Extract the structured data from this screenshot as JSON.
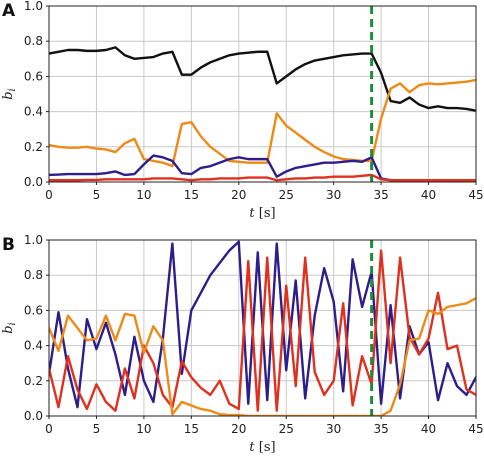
{
  "chart_data": [
    {
      "type": "line",
      "panel_label": "A",
      "xlabel": "t [s]",
      "ylabel": "b_i",
      "xlim": [
        0,
        45
      ],
      "ylim": [
        0,
        1.0
      ],
      "xticks": [
        "0",
        "5",
        "10",
        "15",
        "20",
        "25",
        "30",
        "35",
        "40",
        "45"
      ],
      "yticks": [
        "0.0",
        "0.2",
        "0.4",
        "0.6",
        "0.8",
        "1.0"
      ],
      "grid": true,
      "vline": {
        "x": 34,
        "color": "#1e8c3a",
        "style": "dashed"
      },
      "series": [
        {
          "color": "#111111",
          "x": [
            0,
            1,
            2,
            3,
            4,
            5,
            6,
            7,
            8,
            9,
            10,
            11,
            12,
            13,
            14,
            15,
            16,
            17,
            18,
            19,
            20,
            21,
            22,
            23,
            24,
            25,
            26,
            27,
            28,
            29,
            30,
            31,
            32,
            33,
            34,
            35,
            36,
            37,
            38,
            39,
            40,
            41,
            42,
            43,
            44,
            45
          ],
          "values": [
            0.73,
            0.74,
            0.75,
            0.75,
            0.745,
            0.745,
            0.75,
            0.765,
            0.72,
            0.7,
            0.705,
            0.71,
            0.73,
            0.74,
            0.61,
            0.61,
            0.65,
            0.68,
            0.7,
            0.72,
            0.73,
            0.735,
            0.74,
            0.74,
            0.56,
            0.6,
            0.64,
            0.67,
            0.69,
            0.7,
            0.71,
            0.72,
            0.725,
            0.73,
            0.73,
            0.62,
            0.46,
            0.45,
            0.48,
            0.44,
            0.42,
            0.43,
            0.42,
            0.42,
            0.415,
            0.405
          ]
        },
        {
          "color": "#ef8a17",
          "x": [
            0,
            1,
            2,
            3,
            4,
            5,
            6,
            7,
            8,
            9,
            10,
            11,
            12,
            13,
            14,
            15,
            16,
            17,
            18,
            19,
            20,
            21,
            22,
            23,
            24,
            25,
            26,
            27,
            28,
            29,
            30,
            31,
            32,
            33,
            34,
            35,
            36,
            37,
            38,
            39,
            40,
            41,
            42,
            43,
            44,
            45
          ],
          "values": [
            0.21,
            0.2,
            0.195,
            0.195,
            0.2,
            0.19,
            0.185,
            0.17,
            0.22,
            0.245,
            0.13,
            0.12,
            0.11,
            0.09,
            0.33,
            0.34,
            0.26,
            0.2,
            0.16,
            0.12,
            0.115,
            0.11,
            0.11,
            0.11,
            0.39,
            0.32,
            0.28,
            0.24,
            0.2,
            0.17,
            0.145,
            0.13,
            0.125,
            0.12,
            0.12,
            0.36,
            0.53,
            0.56,
            0.51,
            0.55,
            0.56,
            0.555,
            0.56,
            0.565,
            0.57,
            0.58
          ]
        },
        {
          "color": "#2e1e8c",
          "x": [
            0,
            1,
            2,
            3,
            4,
            5,
            6,
            7,
            8,
            9,
            10,
            11,
            12,
            13,
            14,
            15,
            16,
            17,
            18,
            19,
            20,
            21,
            22,
            23,
            24,
            25,
            26,
            27,
            28,
            29,
            30,
            31,
            32,
            33,
            34,
            35,
            36,
            37,
            38,
            39,
            40,
            41,
            42,
            43,
            44,
            45
          ],
          "values": [
            0.04,
            0.042,
            0.045,
            0.045,
            0.045,
            0.045,
            0.05,
            0.06,
            0.04,
            0.045,
            0.1,
            0.15,
            0.14,
            0.12,
            0.05,
            0.045,
            0.08,
            0.09,
            0.11,
            0.13,
            0.14,
            0.13,
            0.13,
            0.13,
            0.03,
            0.06,
            0.08,
            0.09,
            0.1,
            0.11,
            0.11,
            0.115,
            0.12,
            0.115,
            0.14,
            0.02,
            0.01,
            0.01,
            0.01,
            0.01,
            0.01,
            0.01,
            0.01,
            0.01,
            0.01,
            0.01
          ]
        },
        {
          "color": "#e0301e",
          "x": [
            0,
            1,
            2,
            3,
            4,
            5,
            6,
            7,
            8,
            9,
            10,
            11,
            12,
            13,
            14,
            15,
            16,
            17,
            18,
            19,
            20,
            21,
            22,
            23,
            24,
            25,
            26,
            27,
            28,
            29,
            30,
            31,
            32,
            33,
            34,
            35,
            36,
            37,
            38,
            39,
            40,
            41,
            42,
            43,
            44,
            45
          ],
          "values": [
            0.01,
            0.01,
            0.01,
            0.01,
            0.012,
            0.012,
            0.015,
            0.015,
            0.015,
            0.015,
            0.015,
            0.02,
            0.02,
            0.02,
            0.015,
            0.01,
            0.015,
            0.015,
            0.02,
            0.02,
            0.02,
            0.025,
            0.025,
            0.025,
            0.01,
            0.015,
            0.02,
            0.02,
            0.025,
            0.025,
            0.03,
            0.03,
            0.03,
            0.035,
            0.04,
            0.015,
            0.01,
            0.01,
            0.01,
            0.01,
            0.01,
            0.01,
            0.01,
            0.01,
            0.01,
            0.01
          ]
        }
      ]
    },
    {
      "type": "line",
      "panel_label": "B",
      "xlabel": "t [s]",
      "ylabel": "b_i",
      "xlim": [
        0,
        45
      ],
      "ylim": [
        0,
        1.0
      ],
      "xticks": [
        "0",
        "5",
        "10",
        "15",
        "20",
        "25",
        "30",
        "35",
        "40",
        "45"
      ],
      "yticks": [
        "0.0",
        "0.2",
        "0.4",
        "0.6",
        "0.8",
        "1.0"
      ],
      "grid": true,
      "vline": {
        "x": 34,
        "color": "#1e8c3a",
        "style": "dashed"
      },
      "series": [
        {
          "color": "#2e1e8c",
          "x": [
            0,
            1,
            2,
            3,
            4,
            5,
            6,
            7,
            8,
            9,
            10,
            11,
            12,
            13,
            14,
            15,
            16,
            17,
            18,
            19,
            20,
            21,
            22,
            23,
            24,
            25,
            26,
            27,
            28,
            29,
            30,
            31,
            32,
            33,
            34,
            35,
            36,
            37,
            38,
            39,
            40,
            41,
            42,
            43,
            44,
            45
          ],
          "values": [
            0.24,
            0.59,
            0.27,
            0.05,
            0.55,
            0.38,
            0.53,
            0.35,
            0.12,
            0.45,
            0.2,
            0.08,
            0.44,
            0.98,
            0.24,
            0.6,
            0.7,
            0.8,
            0.87,
            0.94,
            0.99,
            0.07,
            0.93,
            0.09,
            0.98,
            0.26,
            0.77,
            0.1,
            0.57,
            0.84,
            0.65,
            0.14,
            0.89,
            0.62,
            0.82,
            0.07,
            0.63,
            0.1,
            0.51,
            0.35,
            0.42,
            0.09,
            0.3,
            0.17,
            0.12,
            0.22
          ]
        },
        {
          "color": "#e0301e",
          "x": [
            0,
            1,
            2,
            3,
            4,
            5,
            6,
            7,
            8,
            9,
            10,
            11,
            12,
            13,
            14,
            15,
            16,
            17,
            18,
            19,
            20,
            21,
            22,
            23,
            24,
            25,
            26,
            27,
            28,
            29,
            30,
            31,
            32,
            33,
            34,
            35,
            36,
            37,
            38,
            39,
            40,
            41,
            42,
            43,
            44,
            45
          ],
          "values": [
            0.27,
            0.05,
            0.34,
            0.15,
            0.04,
            0.18,
            0.08,
            0.03,
            0.27,
            0.1,
            0.4,
            0.3,
            0.12,
            0.05,
            0.31,
            0.22,
            0.16,
            0.12,
            0.2,
            0.07,
            0.04,
            0.88,
            0.03,
            0.9,
            0.03,
            0.74,
            0.17,
            0.9,
            0.25,
            0.12,
            0.2,
            0.64,
            0.06,
            0.34,
            0.18,
            0.94,
            0.3,
            0.9,
            0.45,
            0.35,
            0.44,
            0.7,
            0.38,
            0.4,
            0.15,
            0.12
          ]
        },
        {
          "color": "#ef8a17",
          "x": [
            0,
            1,
            2,
            3,
            4,
            5,
            6,
            7,
            8,
            9,
            10,
            11,
            12,
            13,
            14,
            15,
            16,
            17,
            18,
            19,
            20,
            21,
            22,
            23,
            24,
            25,
            26,
            27,
            28,
            29,
            30,
            31,
            32,
            33,
            34,
            35,
            36,
            37,
            38,
            39,
            40,
            41,
            42,
            43,
            44,
            45
          ],
          "values": [
            0.5,
            0.37,
            0.57,
            0.5,
            0.43,
            0.44,
            0.57,
            0.43,
            0.58,
            0.57,
            0.36,
            0.51,
            0.43,
            0.01,
            0.08,
            0.06,
            0.04,
            0.03,
            0.01,
            0.005,
            0.005,
            0.0,
            0.0,
            0.0,
            0.0,
            0.0,
            0.0,
            0.0,
            0.0,
            0.0,
            0.0,
            0.0,
            0.0,
            0.0,
            0.0,
            0.0,
            0.03,
            0.18,
            0.43,
            0.44,
            0.6,
            0.58,
            0.62,
            0.63,
            0.64,
            0.67
          ]
        }
      ]
    }
  ]
}
